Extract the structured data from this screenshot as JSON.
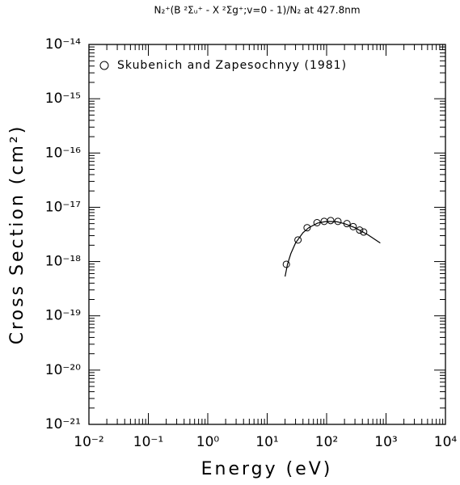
{
  "chart_data": {
    "type": "line",
    "title": "N₂⁺(B ²Σᵤ⁺ - X ²Σg⁺;v=0 - 1)/N₂ at 427.8nm",
    "x_label": "Energy (eV)",
    "y_label": "Cross Section (cm²)",
    "log_x": true,
    "log_y": true,
    "legend": "upper left",
    "xlim": [
      0.01,
      10000
    ],
    "ylim": [
      1e-21,
      1e-14
    ],
    "xticks": [
      {
        "value": 0.01,
        "label": "10⁻²"
      },
      {
        "value": 0.1,
        "label": "10⁻¹"
      },
      {
        "value": 1,
        "label": "10⁰"
      },
      {
        "value": 10,
        "label": "10¹"
      },
      {
        "value": 100,
        "label": "10²"
      },
      {
        "value": 1000,
        "label": "10³"
      },
      {
        "value": 10000,
        "label": "10⁴"
      }
    ],
    "yticks": [
      {
        "value": 1e-21,
        "label": "10⁻²¹"
      },
      {
        "value": 1e-20,
        "label": "10⁻²⁰"
      },
      {
        "value": 1e-19,
        "label": "10⁻¹⁹"
      },
      {
        "value": 1e-18,
        "label": "10⁻¹⁸"
      },
      {
        "value": 1e-17,
        "label": "10⁻¹⁷"
      },
      {
        "value": 1e-16,
        "label": "10⁻¹⁶"
      },
      {
        "value": 1e-15,
        "label": "10⁻¹⁵"
      },
      {
        "value": 1e-14,
        "label": "10⁻¹⁴"
      }
    ],
    "series": [
      {
        "name": "Skubenich and Zapesochnyy (1981)",
        "mode": "markers",
        "color": "#000000",
        "x": [
          21,
          33,
          47,
          69,
          91,
          117,
          155,
          220,
          280,
          360,
          420
        ],
        "values": [
          8.9e-19,
          2.5e-18,
          4.2e-18,
          5.2e-18,
          5.5e-18,
          5.7e-18,
          5.5e-18,
          5e-18,
          4.4e-18,
          3.8e-18,
          3.5e-18
        ]
      },
      {
        "mode": "line",
        "color": "#000000",
        "x": [
          20,
          22,
          25,
          30,
          40,
          50,
          70,
          100,
          150,
          200,
          300,
          500,
          800
        ],
        "values": [
          5.3e-19,
          9e-19,
          1.4e-18,
          2.2e-18,
          3.4e-18,
          4.2e-18,
          5.1e-18,
          5.5e-18,
          5.4e-18,
          5e-18,
          4.2e-18,
          3.1e-18,
          2.2e-18
        ]
      }
    ]
  }
}
